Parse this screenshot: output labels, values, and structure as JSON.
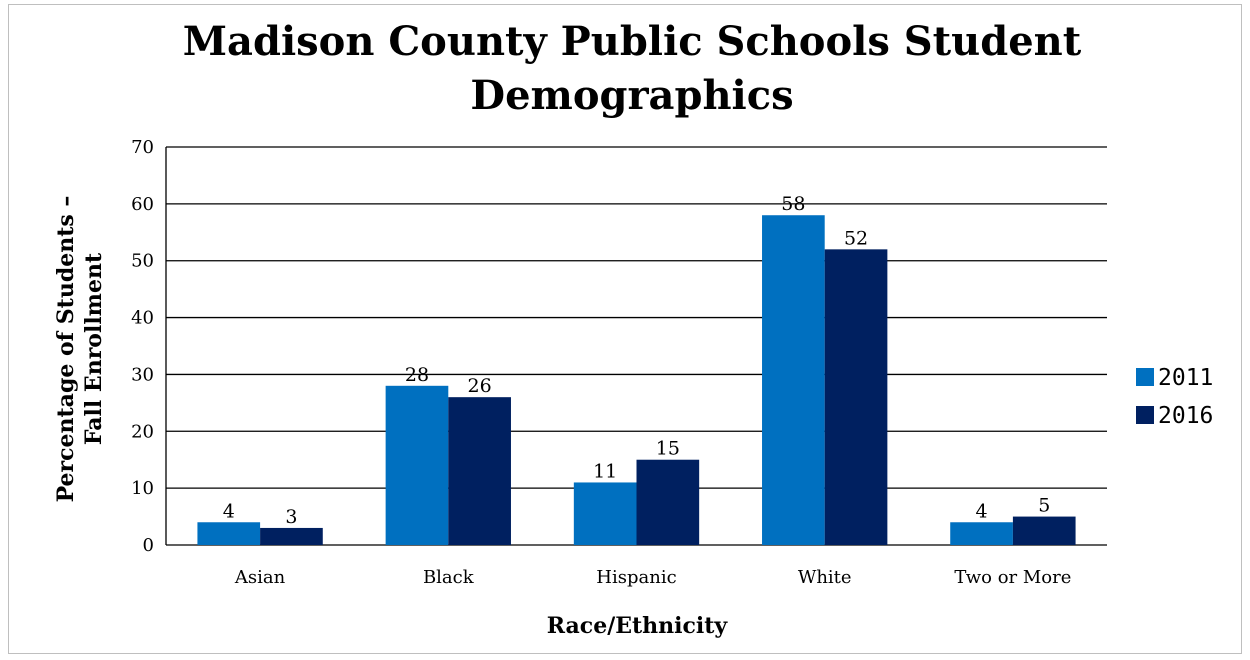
{
  "chart_data": {
    "type": "bar",
    "title": "Madison County Public Schools Student Demographics",
    "title_lines": [
      "Madison County Public Schools Student",
      "Demographics"
    ],
    "xlabel": "Race/Ethnicity",
    "ylabel": "Percentage of Students – Fall Enrollment",
    "ylabel_lines": [
      "Percentage of Students –",
      "Fall Enrollment"
    ],
    "categories": [
      "Asian",
      "Black",
      "Hispanic",
      "White",
      "Two or More"
    ],
    "series": [
      {
        "name": "2011",
        "values": [
          4,
          28,
          11,
          58,
          4
        ],
        "color": "#0070c0"
      },
      {
        "name": "2016",
        "values": [
          3,
          26,
          15,
          52,
          5
        ],
        "color": "#002060"
      }
    ],
    "ylim": [
      0,
      70
    ],
    "yticks": [
      0,
      10,
      20,
      30,
      40,
      50,
      60,
      70
    ],
    "grid": true,
    "legend_position": "right",
    "data_labels": true
  }
}
